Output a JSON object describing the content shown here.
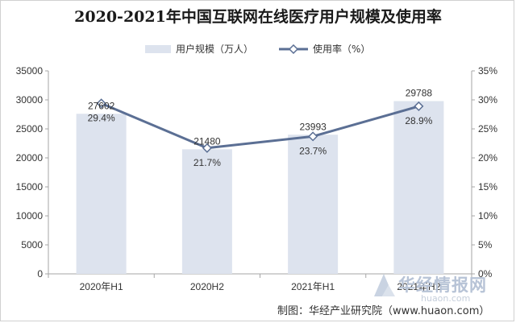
{
  "chart_data": {
    "type": "bar",
    "title": "2020-2021年中国互联网在线医疗用户规模及使用率",
    "categories": [
      "2020年H1",
      "2020H2",
      "2021年H1",
      "2021年H2"
    ],
    "series": [
      {
        "name": "用户规模（万人）",
        "type": "bar",
        "axis": "left",
        "values": [
          27602,
          21480,
          23993,
          29788
        ],
        "labels": [
          "27602",
          "21480",
          "23993",
          "29788"
        ],
        "color": "#dde3ee"
      },
      {
        "name": "使用率（%）",
        "type": "line",
        "axis": "right",
        "values": [
          29.4,
          21.7,
          23.7,
          28.9
        ],
        "labels": [
          "29.4%",
          "21.7%",
          "23.7%",
          "28.9%"
        ],
        "color": "#5b6f94",
        "marker": "diamond"
      }
    ],
    "y_left": {
      "ylim": [
        0,
        35000
      ],
      "ticks": [
        "0",
        "5000",
        "10000",
        "15000",
        "20000",
        "25000",
        "30000",
        "35000"
      ]
    },
    "y_right": {
      "ylim": [
        0,
        35
      ],
      "ticks": [
        "0%",
        "5%",
        "10%",
        "15%",
        "20%",
        "25%",
        "30%",
        "35%"
      ]
    },
    "grid": false,
    "legend_position": "top-center"
  },
  "source": "制图：华经产业研究院（www.huaon.com）",
  "watermark": {
    "main": "华经情报网",
    "sub": "huaon.com"
  }
}
